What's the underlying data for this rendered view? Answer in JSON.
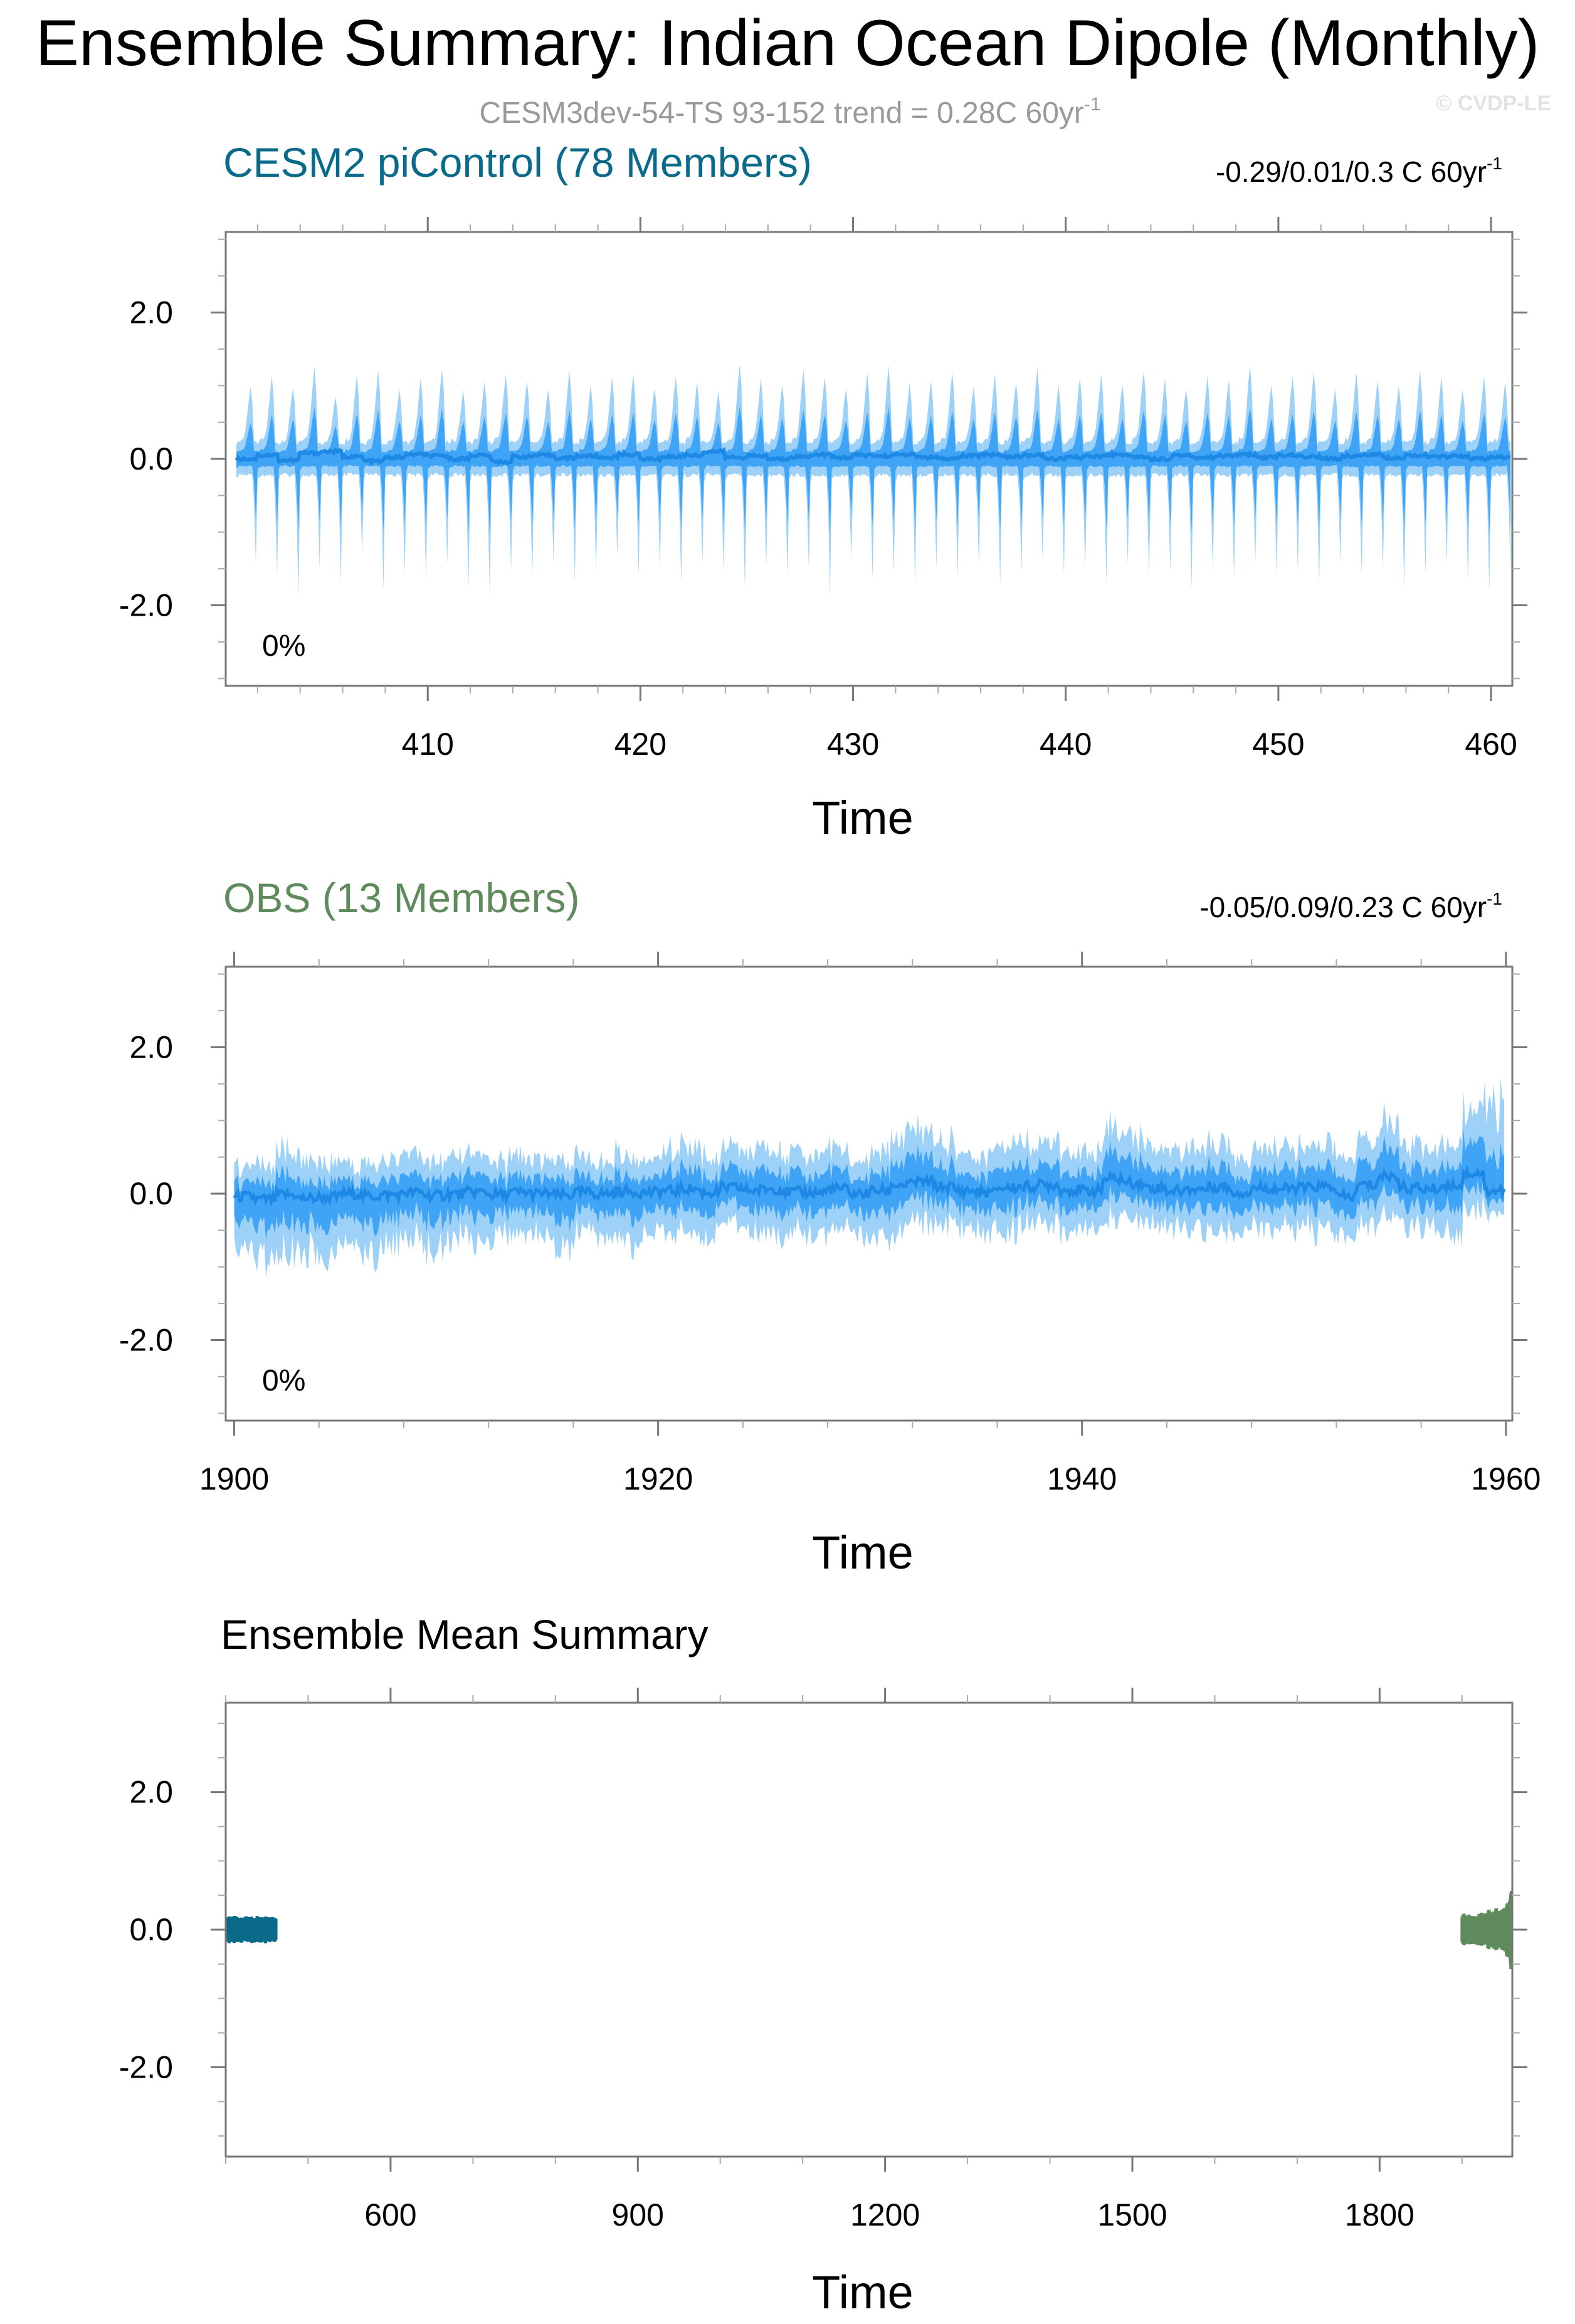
{
  "title": "Ensemble Summary: Indian Ocean Dipole (Monthly)",
  "subtitle": {
    "text": "CESM3dev-54-TS 93-152 trend = 0.28C 60yr",
    "sup": "-1"
  },
  "watermark": "© CVDP-LE",
  "colors": {
    "outer_band": "#9ed1f7",
    "inner_band": "#3fa4f5",
    "mean_line": "#1e88e5",
    "cesm_title": "#0a6a8a",
    "obs_title": "#5e8a5c",
    "subtitle": "#9a9a9a",
    "frame": "#777777"
  },
  "chart_data": [
    {
      "type": "area",
      "name": "cesm-panel",
      "title": "CESM2 piControl (78 Members)",
      "title_color": "#0a6a8a",
      "trend_text": "-0.29/0.01/0.3 C 60yr",
      "trend_sup": "-1",
      "percent_label": "0%",
      "xlabel": "Time",
      "xlim": [
        400.5,
        461.0
      ],
      "ylim": [
        -3.1,
        3.1
      ],
      "x_ticks": [
        410,
        420,
        430,
        440,
        450,
        460
      ],
      "x_minor_step": 2,
      "y_ticks": [
        -2.0,
        0.0,
        2.0
      ],
      "y_tick_labels": [
        "-2.0",
        "0.0",
        "2.0"
      ],
      "y_minor_step": 0.5,
      "x_start": 401.0,
      "x_end": 460.92,
      "outer_band_max": [
        1.0,
        1.12,
        0.98,
        1.25,
        0.85,
        1.15,
        1.2,
        0.95,
        1.1,
        1.22,
        0.92,
        1.05,
        1.18,
        1.08,
        0.96,
        1.2,
        1.0,
        1.1,
        1.15,
        0.98,
        1.12,
        1.05,
        0.92,
        1.3,
        1.08,
        1.0,
        1.2,
        1.1,
        0.95,
        1.15,
        1.25,
        1.02,
        1.08,
        1.18,
        0.96,
        1.12,
        1.05,
        1.22,
        0.98,
        1.1,
        1.15,
        1.0,
        1.2,
        1.08,
        0.95,
        1.12,
        1.05,
        1.28,
        1.02,
        1.1,
        1.18,
        0.98,
        1.15,
        1.08,
        1.0,
        1.2,
        1.1,
        0.95,
        1.12,
        1.05
      ],
      "outer_band_min": [
        -1.4,
        -1.6,
        -1.9,
        -1.5,
        -1.7,
        -1.3,
        -1.8,
        -1.55,
        -1.65,
        -1.4,
        -1.75,
        -1.85,
        -1.5,
        -1.6,
        -1.45,
        -1.7,
        -1.55,
        -1.35,
        -1.6,
        -1.5,
        -1.7,
        -1.4,
        -1.55,
        -1.8,
        -1.45,
        -1.6,
        -1.5,
        -1.85,
        -1.4,
        -1.65,
        -1.55,
        -1.7,
        -1.5,
        -1.6,
        -1.45,
        -1.75,
        -1.55,
        -1.4,
        -1.6,
        -1.5,
        -1.7,
        -1.45,
        -1.6,
        -1.55,
        -1.8,
        -1.5,
        -1.65,
        -1.4,
        -1.6,
        -1.55,
        -1.7,
        -1.45,
        -1.6,
        -1.5,
        -1.75,
        -1.55,
        -1.4,
        -1.65,
        -1.8,
        -1.6
      ],
      "inner_band_max": [
        0.5,
        0.6,
        0.55,
        0.7,
        0.45,
        0.62,
        0.66,
        0.52,
        0.6,
        0.68,
        0.5,
        0.58,
        0.64,
        0.6,
        0.52,
        0.66,
        0.55,
        0.6,
        0.63,
        0.54,
        0.62,
        0.58,
        0.5,
        0.72,
        0.6,
        0.55,
        0.66,
        0.6,
        0.52,
        0.63,
        0.7,
        0.56,
        0.6,
        0.65,
        0.53,
        0.62,
        0.58,
        0.67,
        0.54,
        0.6,
        0.63,
        0.55,
        0.66,
        0.6,
        0.52,
        0.62,
        0.58,
        0.7,
        0.56,
        0.6,
        0.65,
        0.54,
        0.63,
        0.6,
        0.55,
        0.66,
        0.6,
        0.52,
        0.62,
        0.58
      ],
      "inner_band_min": [
        -0.8,
        -0.9,
        -1.0,
        -0.85,
        -0.95,
        -0.75,
        -1.0,
        -0.88,
        -0.92,
        -0.8,
        -0.98,
        -1.02,
        -0.85,
        -0.9,
        -0.82,
        -0.96,
        -0.88,
        -0.78,
        -0.9,
        -0.85,
        -0.96,
        -0.8,
        -0.88,
        -1.0,
        -0.82,
        -0.9,
        -0.85,
        -1.02,
        -0.8,
        -0.92,
        -0.88,
        -0.96,
        -0.85,
        -0.9,
        -0.82,
        -0.98,
        -0.88,
        -0.8,
        -0.9,
        -0.85,
        -0.96,
        -0.82,
        -0.9,
        -0.88,
        -1.0,
        -0.85,
        -0.92,
        -0.8,
        -0.9,
        -0.88,
        -0.96,
        -0.82,
        -0.9,
        -0.85,
        -0.98,
        -0.88,
        -0.8,
        -0.92,
        -1.0,
        -0.9
      ],
      "annual_mean": [
        0.0,
        0.05,
        -0.02,
        0.08,
        0.1,
        0.03,
        -0.03,
        0.02,
        0.06,
        0.04,
        0.0,
        0.05,
        -0.04,
        0.03,
        0.05,
        0.01,
        0.04,
        0.02,
        0.06,
        0.0,
        0.03,
        0.05,
        0.1,
        0.02,
        0.04,
        0.0,
        0.03,
        0.06,
        0.02,
        0.05,
        0.04,
        0.06,
        0.02,
        0.0,
        0.04,
        0.06,
        0.03,
        0.05,
        0.0,
        0.02,
        0.04,
        0.06,
        0.03,
        0.0,
        0.05,
        0.02,
        0.04,
        0.06,
        0.02,
        0.05,
        0.03,
        0.0,
        0.04,
        0.06,
        0.02,
        0.05,
        0.03,
        0.04,
        0.0,
        0.02
      ]
    },
    {
      "type": "area",
      "name": "obs-panel",
      "title": "OBS (13 Members)",
      "title_color": "#5e8a5c",
      "trend_text": "-0.05/0.09/0.23 C 60yr",
      "trend_sup": "-1",
      "percent_label": "0%",
      "xlabel": "Time",
      "xlim": [
        1899.6,
        1960.3
      ],
      "ylim": [
        -3.1,
        3.1
      ],
      "x_ticks": [
        1900,
        1920,
        1940,
        1960
      ],
      "x_minor_step": 4,
      "y_ticks": [
        -2.0,
        0.0,
        2.0
      ],
      "y_tick_labels": [
        "-2.0",
        "0.0",
        "2.0"
      ],
      "y_minor_step": 0.5,
      "x_start": 1900.0,
      "x_end": 1959.92,
      "seasonal_outer_max": [
        0.5,
        0.6,
        0.75,
        0.7,
        0.6,
        0.48,
        0.55,
        0.62,
        0.65,
        0.58,
        0.6,
        0.62,
        0.55,
        0.62,
        0.58,
        0.55,
        0.6,
        0.52,
        0.65,
        0.6,
        0.68,
        0.7,
        0.65,
        0.72,
        0.68,
        0.7,
        0.62,
        0.65,
        0.7,
        0.58,
        0.65,
        0.8,
        0.82,
        0.78,
        0.65,
        0.6,
        0.7,
        0.72,
        0.75,
        0.68,
        0.65,
        0.85,
        0.78,
        0.72,
        0.65,
        0.7,
        0.75,
        0.6,
        0.72,
        0.68,
        0.7,
        0.72,
        0.6,
        0.78,
        0.92,
        0.75,
        0.7,
        0.78,
        1.05,
        1.5
      ],
      "seasonal_outer_min": [
        -0.9,
        -1.1,
        -1.05,
        -0.95,
        -1.0,
        -0.85,
        -1.0,
        -0.9,
        -0.85,
        -0.95,
        -0.8,
        -0.9,
        -0.75,
        -0.85,
        -0.8,
        -0.9,
        -0.75,
        -0.82,
        -0.9,
        -0.8,
        -0.72,
        -0.78,
        -0.8,
        -0.7,
        -0.75,
        -0.78,
        -0.72,
        -0.8,
        -0.75,
        -0.7,
        -0.8,
        -0.85,
        -0.78,
        -0.7,
        -0.65,
        -0.75,
        -0.8,
        -0.7,
        -0.65,
        -0.72,
        -0.68,
        -0.75,
        -0.7,
        -0.62,
        -0.7,
        -0.75,
        -0.72,
        -0.68,
        -0.72,
        -0.7,
        -0.75,
        -0.88,
        -0.7,
        -0.72,
        -0.8,
        -0.68,
        -0.75,
        -0.85,
        -0.72,
        -0.4
      ],
      "seasonal_inner_max": [
        0.25,
        0.3,
        0.35,
        0.3,
        0.28,
        0.22,
        0.26,
        0.3,
        0.3,
        0.28,
        0.28,
        0.3,
        0.26,
        0.28,
        0.27,
        0.26,
        0.28,
        0.25,
        0.3,
        0.28,
        0.32,
        0.34,
        0.3,
        0.35,
        0.32,
        0.34,
        0.3,
        0.3,
        0.34,
        0.28,
        0.3,
        0.38,
        0.4,
        0.36,
        0.3,
        0.28,
        0.33,
        0.34,
        0.36,
        0.32,
        0.3,
        0.42,
        0.38,
        0.34,
        0.3,
        0.33,
        0.36,
        0.28,
        0.34,
        0.32,
        0.33,
        0.34,
        0.28,
        0.38,
        0.45,
        0.36,
        0.33,
        0.38,
        0.52,
        0.6
      ],
      "seasonal_inner_min": [
        -0.45,
        -0.55,
        -0.52,
        -0.48,
        -0.5,
        -0.42,
        -0.5,
        -0.45,
        -0.42,
        -0.48,
        -0.4,
        -0.45,
        -0.38,
        -0.42,
        -0.4,
        -0.45,
        -0.38,
        -0.41,
        -0.45,
        -0.4,
        -0.36,
        -0.39,
        -0.4,
        -0.35,
        -0.38,
        -0.39,
        -0.36,
        -0.4,
        -0.38,
        -0.35,
        -0.4,
        -0.42,
        -0.39,
        -0.35,
        -0.33,
        -0.38,
        -0.4,
        -0.35,
        -0.33,
        -0.36,
        -0.34,
        -0.38,
        -0.35,
        -0.31,
        -0.35,
        -0.38,
        -0.36,
        -0.34,
        -0.36,
        -0.35,
        -0.38,
        -0.44,
        -0.35,
        -0.36,
        -0.4,
        -0.34,
        -0.38,
        -0.42,
        -0.36,
        -0.2
      ],
      "annual_mean": [
        -0.05,
        -0.1,
        -0.02,
        -0.08,
        -0.06,
        0.0,
        -0.04,
        -0.02,
        0.02,
        -0.03,
        0.0,
        0.03,
        -0.02,
        0.02,
        0.0,
        -0.03,
        0.02,
        0.0,
        0.04,
        0.02,
        0.05,
        0.08,
        0.02,
        0.1,
        0.06,
        0.08,
        0.03,
        0.02,
        0.08,
        0.0,
        0.05,
        0.15,
        0.2,
        0.12,
        0.05,
        0.02,
        0.1,
        0.12,
        0.15,
        0.06,
        0.05,
        0.25,
        0.18,
        0.1,
        0.05,
        0.08,
        0.12,
        0.02,
        0.1,
        0.08,
        0.1,
        0.12,
        -0.05,
        0.15,
        0.3,
        0.1,
        0.08,
        0.15,
        0.35,
        0.05
      ]
    },
    {
      "type": "line",
      "name": "ensemble-mean-panel",
      "title": "Ensemble Mean Summary",
      "title_color": "#000000",
      "xlabel": "Time",
      "xlim": [
        400.0,
        1961.0
      ],
      "ylim": [
        -3.3,
        3.3
      ],
      "x_ticks": [
        600,
        900,
        1200,
        1500,
        1800
      ],
      "x_minor_step": 100,
      "y_ticks": [
        -2.0,
        0.0,
        2.0
      ],
      "y_tick_labels": [
        "-2.0",
        "0.0",
        "2.0"
      ],
      "y_minor_step": 0.5,
      "series": [
        {
          "name": "CESM2 piControl",
          "color": "#0a6a8a",
          "x_start": 401.0,
          "x_end": 460.92,
          "annual_amplitude": [
            0.16,
            0.18,
            0.15,
            0.2,
            0.14,
            0.17,
            0.19,
            0.15,
            0.18,
            0.2,
            0.14,
            0.16,
            0.19,
            0.17,
            0.15,
            0.18,
            0.16,
            0.17,
            0.19,
            0.15,
            0.18,
            0.16,
            0.14,
            0.21,
            0.17,
            0.16,
            0.19,
            0.17,
            0.15,
            0.18,
            0.2,
            0.16,
            0.17,
            0.19,
            0.15,
            0.18,
            0.16,
            0.2,
            0.15,
            0.17,
            0.19,
            0.16,
            0.19,
            0.17,
            0.15,
            0.18,
            0.16,
            0.2,
            0.16,
            0.17,
            0.19,
            0.15,
            0.18,
            0.17,
            0.16,
            0.19,
            0.17,
            0.15,
            0.18,
            0.16
          ]
        },
        {
          "name": "OBS",
          "color": "#5e8a5c",
          "x_start": 1900.0,
          "x_end": 1959.92,
          "annual_amplitude": [
            0.2,
            0.22,
            0.24,
            0.22,
            0.2,
            0.18,
            0.2,
            0.21,
            0.22,
            0.2,
            0.2,
            0.21,
            0.19,
            0.21,
            0.2,
            0.19,
            0.2,
            0.19,
            0.22,
            0.21,
            0.23,
            0.24,
            0.22,
            0.25,
            0.23,
            0.24,
            0.22,
            0.22,
            0.24,
            0.21,
            0.23,
            0.27,
            0.29,
            0.27,
            0.23,
            0.22,
            0.25,
            0.26,
            0.28,
            0.25,
            0.24,
            0.31,
            0.29,
            0.27,
            0.25,
            0.27,
            0.29,
            0.25,
            0.29,
            0.3,
            0.31,
            0.33,
            0.32,
            0.36,
            0.4,
            0.38,
            0.38,
            0.42,
            0.5,
            0.58
          ]
        }
      ]
    }
  ]
}
